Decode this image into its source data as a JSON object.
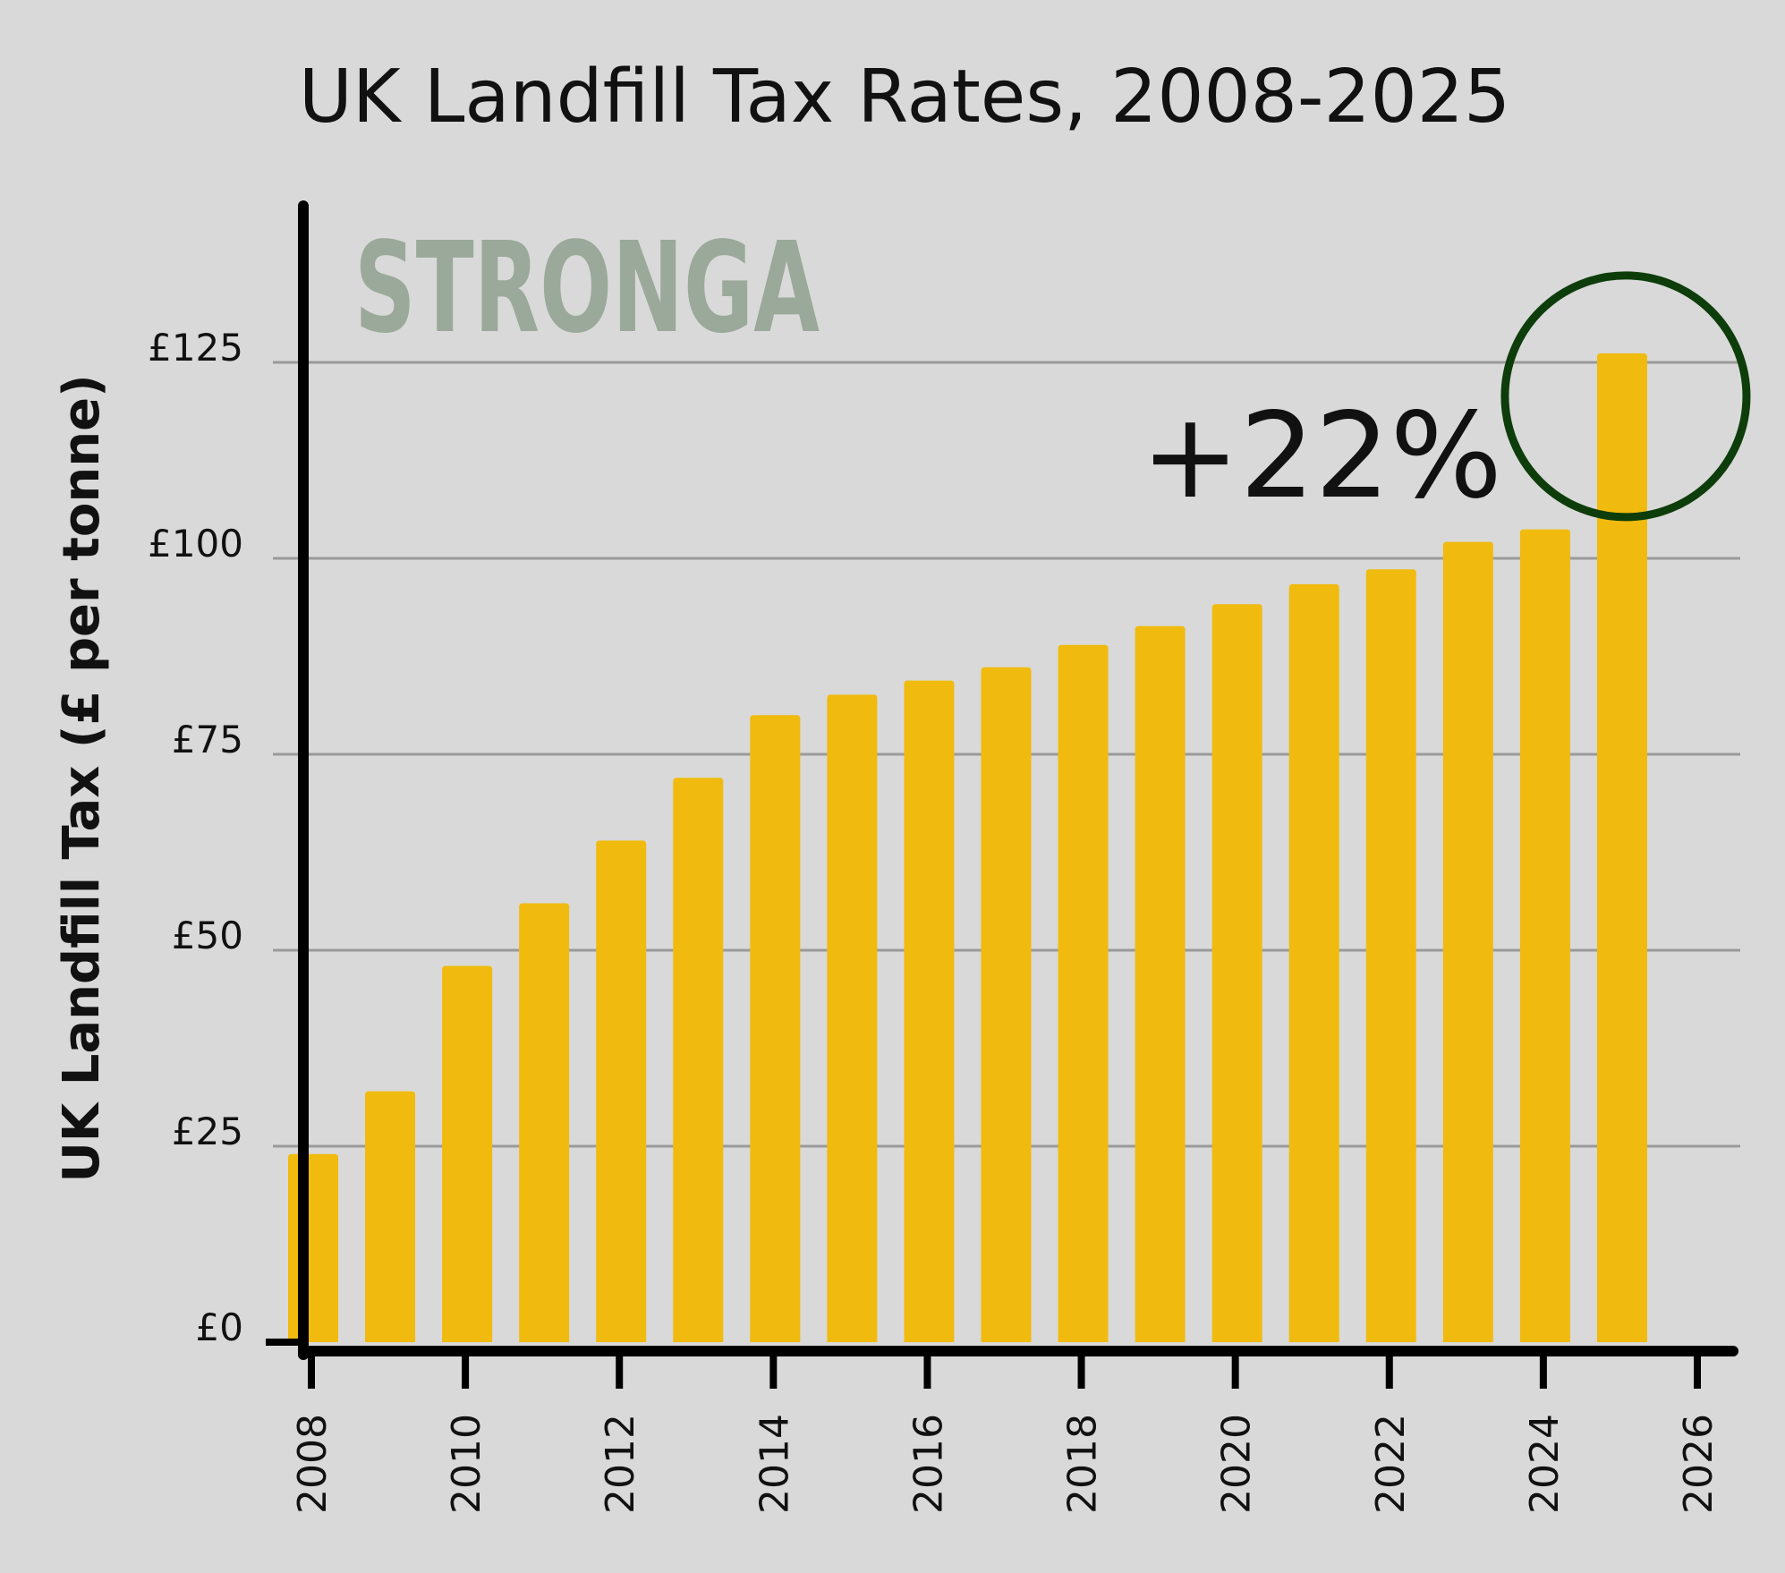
{
  "chart_data": {
    "type": "bar",
    "title": "UK Landfill Tax Rates, 2008-2025",
    "xlabel": "",
    "ylabel": "UK Landfill Tax (£ per tonne)",
    "categories": [
      "2008",
      "2009",
      "2010",
      "2011",
      "2012",
      "2013",
      "2014",
      "2015",
      "2016",
      "2017",
      "2018",
      "2019",
      "2020",
      "2021",
      "2022",
      "2023",
      "2024",
      "2025"
    ],
    "values": [
      24,
      32,
      48,
      56,
      64,
      72,
      80,
      82.6,
      84.4,
      86.1,
      88.95,
      91.35,
      94.15,
      96.7,
      98.6,
      102.1,
      103.7,
      126.15
    ],
    "ylim": [
      0,
      140
    ],
    "yticks": [
      0,
      25,
      50,
      75,
      100,
      125
    ],
    "ytick_labels": [
      "£0",
      "£25",
      "£50",
      "£75",
      "£100",
      "£125"
    ],
    "xlim": [
      2008,
      2026
    ],
    "xticks": [
      2008,
      2010,
      2012,
      2014,
      2016,
      2018,
      2020,
      2022,
      2024,
      2026
    ],
    "xtick_labels": [
      "2008",
      "2010",
      "2012",
      "2014",
      "2016",
      "2018",
      "2020",
      "2022",
      "2024",
      "2026"
    ],
    "grid": true,
    "annotation": "+22%",
    "highlight_category": "2025",
    "watermark": "STRONGA"
  },
  "colors": {
    "background": "#d9d9d9",
    "bar": "#f0bb0e",
    "gridline": "#9a9a9a",
    "axis": "#000000",
    "highlight_circle": "#0d3d0a",
    "watermark": "#9ba99a",
    "text": "#111111"
  }
}
